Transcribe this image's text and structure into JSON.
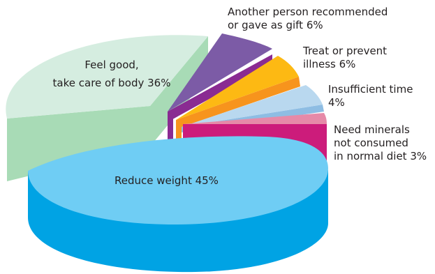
{
  "chart_data": {
    "type": "pie",
    "title": "",
    "slices": [
      {
        "label_lines": [
          "Reduce weight 45%"
        ],
        "value": 45,
        "top_color": "#6fcdf4",
        "side_color": "#00a3e4"
      },
      {
        "label_lines": [
          "Feel good,",
          "take care of body 36%"
        ],
        "value": 36,
        "top_color": "#d5ede0",
        "side_color": "#a8dbb6"
      },
      {
        "label_lines": [
          "Another person recommended",
          "or gave as gift 6%"
        ],
        "value": 6,
        "top_color": "#7c5ba6",
        "side_color": "#8a2b92"
      },
      {
        "label_lines": [
          "Treat or prevent",
          "illness 6%"
        ],
        "value": 6,
        "top_color": "#fdb913",
        "side_color": "#f7941d"
      },
      {
        "label_lines": [
          "Insufficient time",
          "4%"
        ],
        "value": 4,
        "top_color": "#b9d8ef",
        "side_color": "#8ebde3"
      },
      {
        "label_lines": [
          "Need minerals",
          "not consumed",
          "in normal diet 3%"
        ],
        "value": 3,
        "top_color": "#e68aa8",
        "side_color": "#cc1c7b"
      }
    ]
  }
}
